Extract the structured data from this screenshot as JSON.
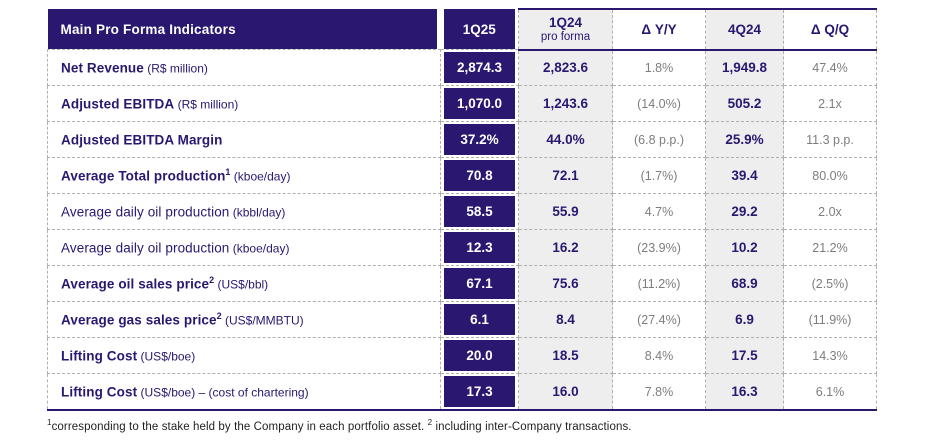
{
  "colors": {
    "navy": "#2a1770",
    "grey_column_bg": "#eeeeee",
    "delta_text_grey": "#7d7d7d",
    "dashed_border": "#b0b0b0"
  },
  "table": {
    "header": {
      "indicators": "Main Pro Forma Indicators",
      "q1_25": "1Q25",
      "q1_24_line1": "1Q24",
      "q1_24_line2": "pro forma",
      "yoy": "Δ Y/Y",
      "q4_24": "4Q24",
      "qoq": "Δ Q/Q"
    },
    "rows": [
      {
        "label_main": "Net Revenue",
        "label_sup": "",
        "label_unit": " (R$ million)",
        "q1_25": "2,874.3",
        "q1_24": "2,823.6",
        "yoy": "1.8%",
        "q4_24": "1,949.8",
        "qoq": "47.4%"
      },
      {
        "label_main": "Adjusted EBITDA",
        "label_sup": "",
        "label_unit": " (R$ million)",
        "q1_25": "1,070.0",
        "q1_24": "1,243.6",
        "yoy": "(14.0%)",
        "q4_24": "505.2",
        "qoq": "2.1x"
      },
      {
        "label_main": "Adjusted EBITDA Margin",
        "label_sup": "",
        "label_unit": "",
        "q1_25": "37.2%",
        "q1_24": "44.0%",
        "yoy": "(6.8 p.p.)",
        "q4_24": "25.9%",
        "qoq": "11.3 p.p."
      },
      {
        "label_main": "Average Total production",
        "label_sup": "1",
        "label_unit": " (kboe/day)",
        "q1_25": "70.8",
        "q1_24": "72.1",
        "yoy": "(1.7%)",
        "q4_24": "39.4",
        "qoq": "80.0%"
      },
      {
        "label_main": "Average daily oil production",
        "label_sup": "",
        "label_unit": " (kbbl/day)",
        "q1_25": "58.5",
        "q1_24": "55.9",
        "yoy": "4.7%",
        "q4_24": "29.2",
        "qoq": "2.0x"
      },
      {
        "label_main": "Average daily oil production",
        "label_sup": "",
        "label_unit": " (kboe/day)",
        "q1_25": "12.3",
        "q1_24": "16.2",
        "yoy": "(23.9%)",
        "q4_24": "10.2",
        "qoq": "21.2%"
      },
      {
        "label_main": "Average oil sales price",
        "label_sup": "2",
        "label_unit": " (US$/bbl)",
        "q1_25": "67.1",
        "q1_24": "75.6",
        "yoy": "(11.2%)",
        "q4_24": "68.9",
        "qoq": "(2.5%)"
      },
      {
        "label_main": "Average gas sales price",
        "label_sup": "2",
        "label_unit": " (US$/MMBTU)",
        "q1_25": "6.1",
        "q1_24": "8.4",
        "yoy": "(27.4%)",
        "q4_24": "6.9",
        "qoq": "(11.9%)"
      },
      {
        "label_main": "Lifting Cost",
        "label_sup": "",
        "label_unit": " (US$/boe)",
        "q1_25": "20.0",
        "q1_24": "18.5",
        "yoy": "8.4%",
        "q4_24": "17.5",
        "qoq": "14.3%"
      },
      {
        "label_main": "Lifting Cost",
        "label_sup": "",
        "label_unit": " (US$/boe) – (cost of chartering)",
        "q1_25": "17.3",
        "q1_24": "16.0",
        "yoy": "7.8%",
        "q4_24": "16.3",
        "qoq": "6.1%"
      }
    ]
  },
  "footnote": {
    "sup1": "1",
    "text1": "corresponding to the stake held by the Company in each portfolio asset. ",
    "sup2": "2",
    "text2": " including inter-Company transactions."
  }
}
